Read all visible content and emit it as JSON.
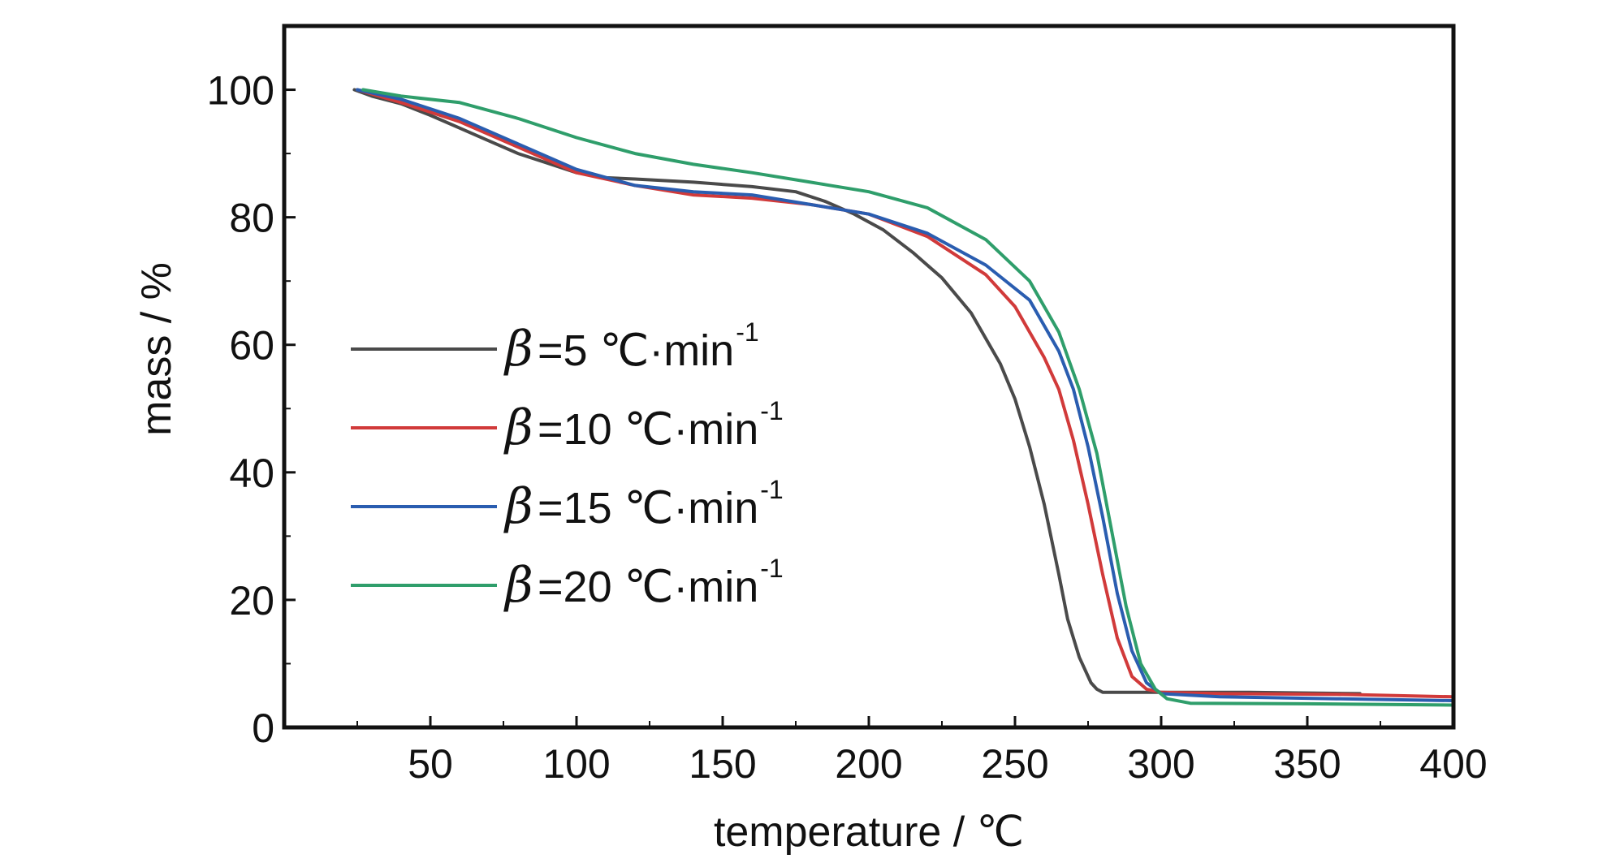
{
  "chart_data": {
    "type": "line",
    "xlabel": "temperature / ℃",
    "ylabel": "mass / %",
    "xlim": [
      0,
      400
    ],
    "ylim": [
      0,
      110
    ],
    "xticks": [
      50,
      100,
      150,
      200,
      250,
      300,
      350,
      400
    ],
    "yticks": [
      0,
      20,
      40,
      60,
      80,
      100
    ],
    "grid": false,
    "legend_position": "center-left",
    "legend_symbol": "β",
    "legend_unit": "℃·min",
    "legend_unit_exponent": "-1",
    "series": [
      {
        "name": "β=5  ℃·min-1",
        "legend_prefix": "=5",
        "color": "#4a4a4a",
        "x": [
          24,
          30,
          40,
          50,
          60,
          70,
          80,
          90,
          100,
          110,
          120,
          140,
          160,
          175,
          185,
          195,
          205,
          215,
          225,
          235,
          245,
          250,
          255,
          260,
          265,
          268,
          272,
          276,
          278,
          280,
          285,
          300,
          330,
          368
        ],
        "y": [
          100,
          99,
          97.8,
          96,
          94,
          92,
          90,
          88.5,
          87,
          86.2,
          86,
          85.5,
          84.8,
          84,
          82.5,
          80.5,
          78,
          74.5,
          70.5,
          65,
          57,
          51.5,
          44,
          35,
          24,
          17,
          11,
          7,
          6,
          5.5,
          5.5,
          5.5,
          5.5,
          5.3
        ]
      },
      {
        "name": "β=10  ℃·min-1",
        "legend_prefix": "=10",
        "color": "#d13a3a",
        "x": [
          25,
          40,
          60,
          80,
          100,
          120,
          140,
          160,
          180,
          200,
          220,
          240,
          250,
          260,
          265,
          270,
          275,
          280,
          285,
          290,
          295,
          300,
          320,
          360,
          400
        ],
        "y": [
          100,
          98,
          95,
          91,
          87,
          85,
          83.5,
          83,
          82,
          80.5,
          77,
          71,
          66,
          58,
          53,
          45,
          35,
          24,
          14,
          8,
          6,
          5.5,
          5.3,
          5.2,
          4.8
        ]
      },
      {
        "name": "β=15  ℃·min-1",
        "legend_prefix": "=15",
        "color": "#2a5db0",
        "x": [
          25,
          40,
          60,
          80,
          100,
          120,
          140,
          160,
          180,
          200,
          220,
          240,
          255,
          265,
          270,
          275,
          280,
          285,
          290,
          295,
          300,
          320,
          360,
          400
        ],
        "y": [
          100,
          98.5,
          95.5,
          91.5,
          87.5,
          85,
          84,
          83.5,
          82,
          80.5,
          77.5,
          72.5,
          67,
          59,
          53,
          44,
          33,
          21,
          12,
          7,
          5.3,
          4.8,
          4.5,
          4.2
        ]
      },
      {
        "name": "β=20  ℃·min-1",
        "legend_prefix": "=20",
        "color": "#2f9e6b",
        "x": [
          27,
          40,
          60,
          80,
          100,
          120,
          140,
          160,
          180,
          200,
          220,
          240,
          255,
          265,
          272,
          278,
          283,
          288,
          293,
          298,
          302,
          310,
          350,
          400
        ],
        "y": [
          100,
          99,
          98,
          95.5,
          92.5,
          90,
          88.3,
          87,
          85.5,
          84,
          81.5,
          76.5,
          70,
          62,
          53,
          43,
          31,
          19,
          10,
          6,
          4.5,
          3.8,
          3.7,
          3.5
        ]
      }
    ]
  }
}
